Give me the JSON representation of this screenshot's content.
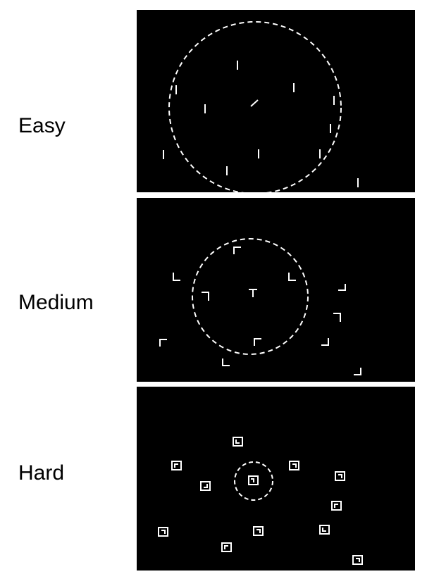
{
  "colors": {
    "background": "#ffffff",
    "panel": "#000000",
    "stimulus": "#ffffff"
  },
  "rows": [
    {
      "label": "Easy",
      "target": "tilted-line",
      "distractor": "vertical-line",
      "distractor_count": 10,
      "circle": "dashed"
    },
    {
      "label": "Medium",
      "target": "T-shape",
      "distractor": "L-shape",
      "distractor_count": 12,
      "circle": "dashed"
    },
    {
      "label": "Hard",
      "target": "framed-square-glyph",
      "distractor": "framed-square-glyph",
      "distractor_count": 13,
      "circle": "dashed"
    }
  ]
}
